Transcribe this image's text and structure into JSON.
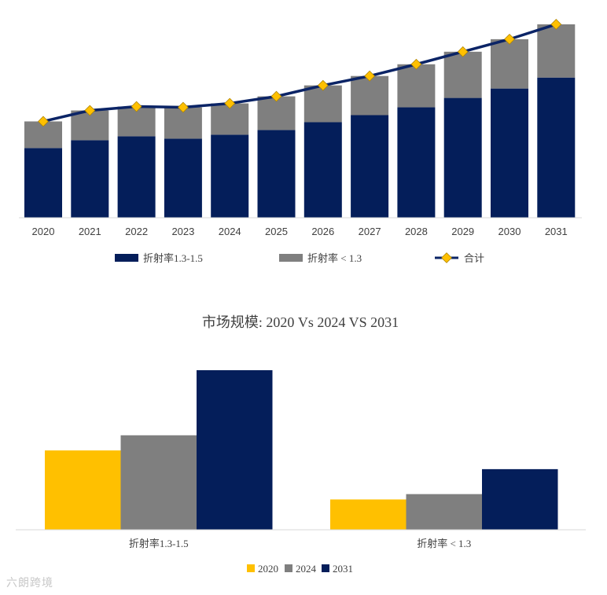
{
  "colors": {
    "dark_navy": "#041E5A",
    "gray": "#7F7F7F",
    "line": "#0B2466",
    "marker": "#FFC000",
    "yellow": "#FFC000",
    "axis": "#D9D9D9"
  },
  "chart_data": [
    {
      "type": "bar",
      "stacked": true,
      "title": "",
      "categories": [
        "2020",
        "2021",
        "2022",
        "2023",
        "2024",
        "2025",
        "2026",
        "2027",
        "2028",
        "2029",
        "2030",
        "2031"
      ],
      "series": [
        {
          "name": "折射率1.3-1.5",
          "values": [
            89,
            99,
            104,
            101,
            106,
            112,
            122,
            131,
            141,
            153,
            165,
            179
          ]
        },
        {
          "name": "折射率 < 1.3",
          "values": [
            34,
            38,
            38,
            40,
            40,
            43,
            47,
            50,
            55,
            59,
            63,
            68
          ]
        }
      ],
      "line_series": {
        "name": "合计",
        "values": [
          123,
          137,
          142,
          141,
          146,
          155,
          169,
          181,
          196,
          212,
          228,
          247
        ]
      },
      "ylim": [
        0,
        260
      ],
      "legend": "bottom"
    },
    {
      "type": "bar",
      "title": "市场规模: 2020 Vs 2024 VS 2031",
      "categories": [
        "折射率1.3-1.5",
        "折射率 < 1.3"
      ],
      "series": [
        {
          "name": "2020",
          "values": [
            89,
            34
          ]
        },
        {
          "name": "2024",
          "values": [
            106,
            40
          ]
        },
        {
          "name": "2031",
          "values": [
            179,
            68
          ]
        }
      ],
      "ylim": [
        0,
        200
      ],
      "legend": "bottom"
    }
  ],
  "watermark": "六朗跨境"
}
